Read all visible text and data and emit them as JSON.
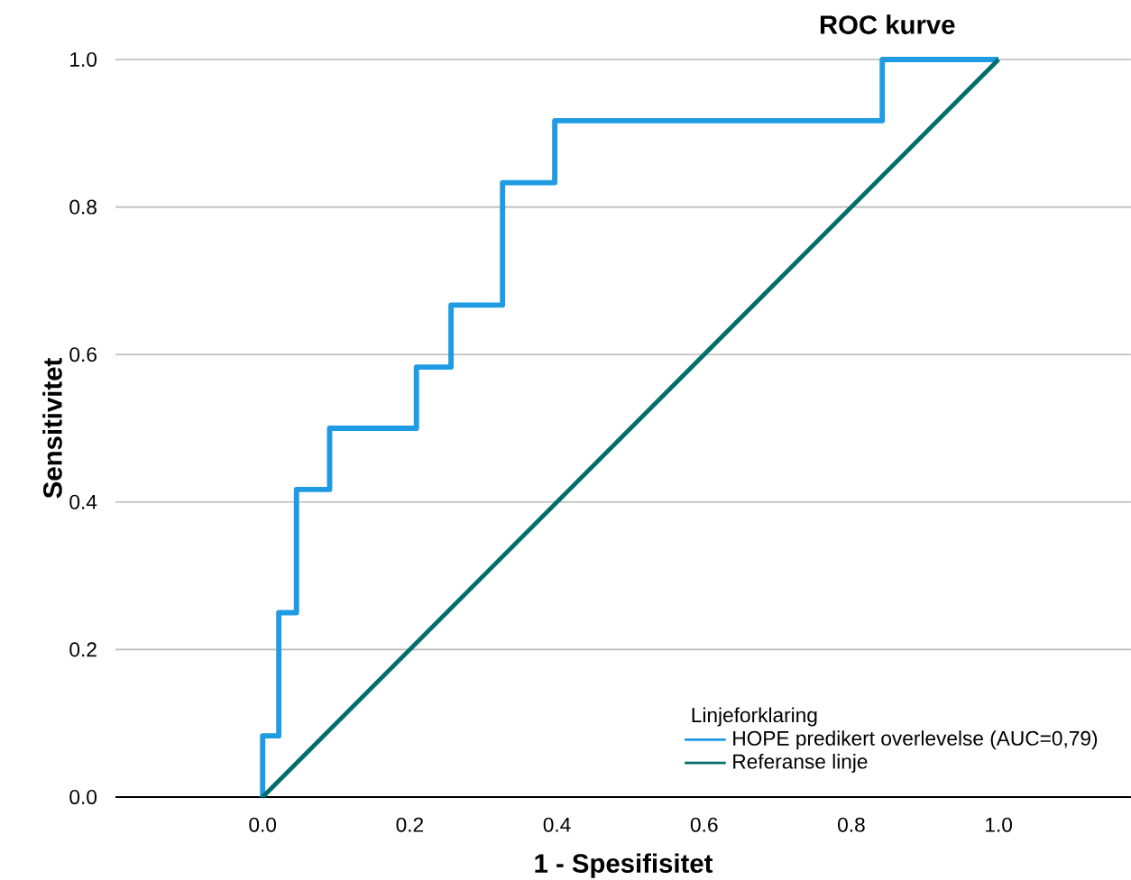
{
  "chart_data": {
    "type": "step",
    "title": "ROC kurve",
    "xlabel": "1 - Spesifisitet",
    "ylabel": "Sensitivitet",
    "legend_title": "Linjeforklaring",
    "series": [
      {
        "name": "HOPE predikert overlevelse (AUC=0,79)",
        "color": "#1f9be4",
        "x": [
          0,
          0.022,
          0.046,
          0.091,
          0.209,
          0.256,
          0.326,
          0.397,
          0.842,
          1.0
        ],
        "values": [
          0,
          0.083,
          0.25,
          0.417,
          0.5,
          0.583,
          0.667,
          0.833,
          0.917,
          1.0
        ]
      },
      {
        "name": "Referanse linje",
        "color": "#006e6a",
        "type": "line",
        "x": [
          0,
          1
        ],
        "values": [
          0,
          1
        ]
      }
    ],
    "xlim": [
      -0.2,
      1.18
    ],
    "ylim": [
      0,
      1
    ],
    "xticks": [
      {
        "value": 0,
        "label": "0.0"
      },
      0.2,
      0.4,
      0.6,
      0.8,
      {
        "value": 1,
        "label": "1.0"
      }
    ],
    "yticks": [
      {
        "value": 0,
        "label": "0.0"
      },
      0.2,
      0.4,
      0.6,
      0.8,
      {
        "value": 1,
        "label": "1.0"
      }
    ],
    "grid": "y",
    "legend": "bottom right"
  }
}
